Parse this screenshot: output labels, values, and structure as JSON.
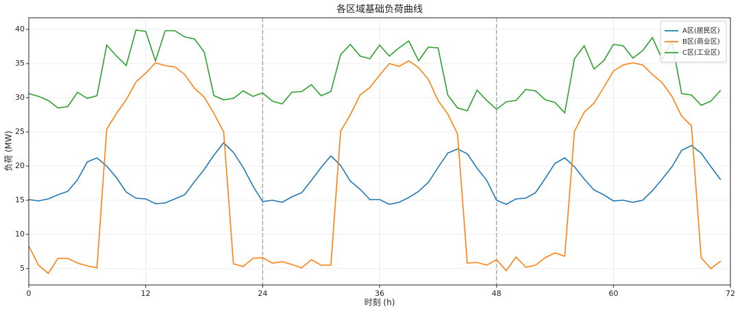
{
  "chart_data": {
    "type": "line",
    "title": "各区域基础负荷曲线",
    "x_label": "时刻 (h)",
    "y_label": "负荷 (MW)",
    "x": [
      0,
      1,
      2,
      3,
      4,
      5,
      6,
      7,
      8,
      9,
      10,
      11,
      12,
      13,
      14,
      15,
      16,
      17,
      18,
      19,
      20,
      21,
      22,
      23,
      24,
      25,
      26,
      27,
      28,
      29,
      30,
      31,
      32,
      33,
      34,
      35,
      36,
      37,
      38,
      39,
      40,
      41,
      42,
      43,
      44,
      45,
      46,
      47,
      48,
      49,
      50,
      51,
      52,
      53,
      54,
      55,
      56,
      57,
      58,
      59,
      60,
      61,
      62,
      63,
      64,
      65,
      66,
      67,
      68,
      69,
      70,
      71
    ],
    "series": [
      {
        "name": "A区(居民区)",
        "color": "#1f77b4",
        "values": [
          15.1,
          14.9,
          15.2,
          15.8,
          16.3,
          18.0,
          20.6,
          21.2,
          20.0,
          18.3,
          16.2,
          15.3,
          15.2,
          14.5,
          14.6,
          15.2,
          15.8,
          17.7,
          19.5,
          21.6,
          23.4,
          22.0,
          19.8,
          17.1,
          14.8,
          15.0,
          14.7,
          15.5,
          16.1,
          17.9,
          19.8,
          21.5,
          20.1,
          17.8,
          16.6,
          15.1,
          15.1,
          14.4,
          14.7,
          15.4,
          16.3,
          17.6,
          19.8,
          21.9,
          22.5,
          21.8,
          19.7,
          17.9,
          15.0,
          14.4,
          15.2,
          15.3,
          16.1,
          18.2,
          20.4,
          21.2,
          19.9,
          18.1,
          16.5,
          15.8,
          14.9,
          15.0,
          14.7,
          15.0,
          16.4,
          18.1,
          19.9,
          22.3,
          23.0,
          21.9,
          19.9,
          18.0
        ]
      },
      {
        "name": "B区(商业区)",
        "color": "#ff7f0e",
        "values": [
          8.3,
          5.5,
          4.3,
          6.5,
          6.5,
          5.8,
          5.4,
          5.1,
          25.4,
          27.7,
          29.7,
          32.3,
          33.6,
          35.1,
          34.7,
          34.5,
          33.4,
          31.4,
          30.1,
          27.7,
          25.0,
          5.7,
          5.3,
          6.5,
          6.6,
          5.8,
          6.0,
          5.6,
          5.1,
          6.3,
          5.5,
          5.5,
          25.1,
          27.5,
          30.4,
          31.5,
          33.3,
          35.0,
          34.6,
          35.4,
          34.4,
          32.7,
          29.6,
          27.6,
          24.7,
          5.8,
          5.9,
          5.5,
          6.3,
          4.7,
          6.7,
          5.2,
          5.5,
          6.6,
          7.3,
          6.8,
          25.1,
          27.9,
          29.2,
          31.5,
          33.9,
          34.8,
          35.1,
          34.8,
          33.4,
          32.2,
          30.2,
          27.3,
          25.9,
          6.6,
          5.0,
          6.1
        ]
      },
      {
        "name": "C区(工业区)",
        "color": "#2ca02c",
        "values": [
          30.6,
          30.2,
          29.6,
          28.5,
          28.7,
          30.8,
          29.9,
          30.3,
          37.7,
          36.1,
          34.7,
          39.9,
          39.7,
          35.4,
          39.8,
          39.8,
          38.9,
          38.6,
          36.7,
          30.3,
          29.7,
          29.9,
          31.0,
          30.2,
          30.7,
          29.5,
          29.1,
          30.8,
          30.9,
          31.9,
          30.3,
          30.9,
          36.3,
          37.8,
          36.1,
          35.7,
          37.7,
          36.1,
          37.3,
          38.3,
          35.4,
          37.4,
          37.3,
          30.4,
          28.5,
          28.1,
          31.1,
          29.6,
          28.3,
          29.4,
          29.6,
          31.2,
          31.0,
          29.7,
          29.3,
          27.8,
          35.7,
          37.6,
          34.2,
          35.4,
          37.8,
          37.6,
          35.8,
          36.9,
          38.8,
          35.6,
          38.2,
          30.6,
          30.4,
          28.9,
          29.5,
          31.1
        ]
      }
    ],
    "xlim": [
      0,
      72
    ],
    "xticks": [
      0,
      12,
      24,
      36,
      48,
      60,
      72
    ],
    "ylim": [
      2.6,
      41.7
    ],
    "yticks": [
      5,
      10,
      15,
      20,
      25,
      30,
      35,
      40
    ],
    "vlines": [
      24,
      48
    ],
    "vline_color": "#aaaaaa",
    "grid": true,
    "legend": "upper right"
  }
}
